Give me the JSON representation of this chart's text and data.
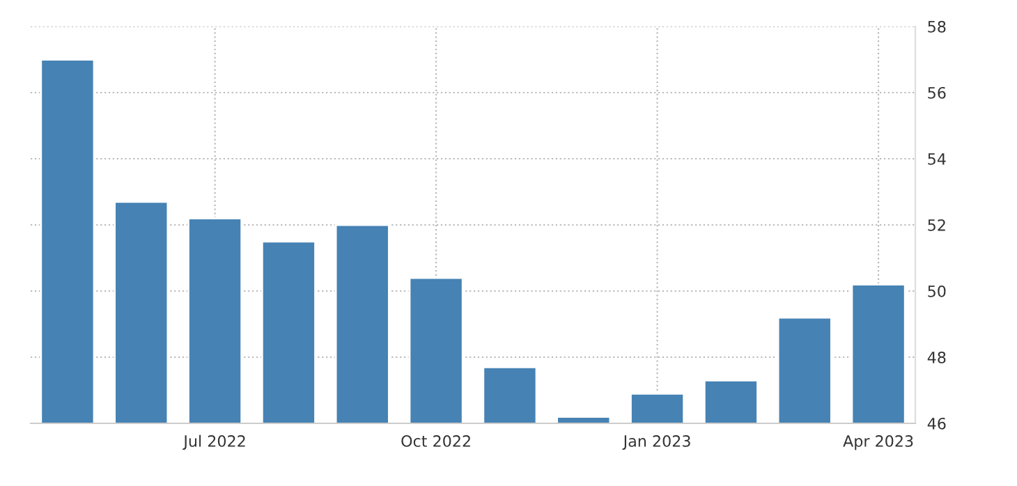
{
  "chart_data": {
    "type": "bar",
    "categories": [
      null,
      null,
      "Jul 2022",
      null,
      null,
      "Oct 2022",
      null,
      null,
      "Jan 2023",
      null,
      null,
      "Apr 2023"
    ],
    "values": [
      57.0,
      52.7,
      52.2,
      51.5,
      52.0,
      50.4,
      47.7,
      46.2,
      46.9,
      47.3,
      49.2,
      50.2
    ],
    "color": "#4682b4",
    "ylim": [
      46,
      58
    ],
    "yticks": [
      46,
      48,
      50,
      52,
      54,
      56,
      58
    ],
    "grid": true
  }
}
